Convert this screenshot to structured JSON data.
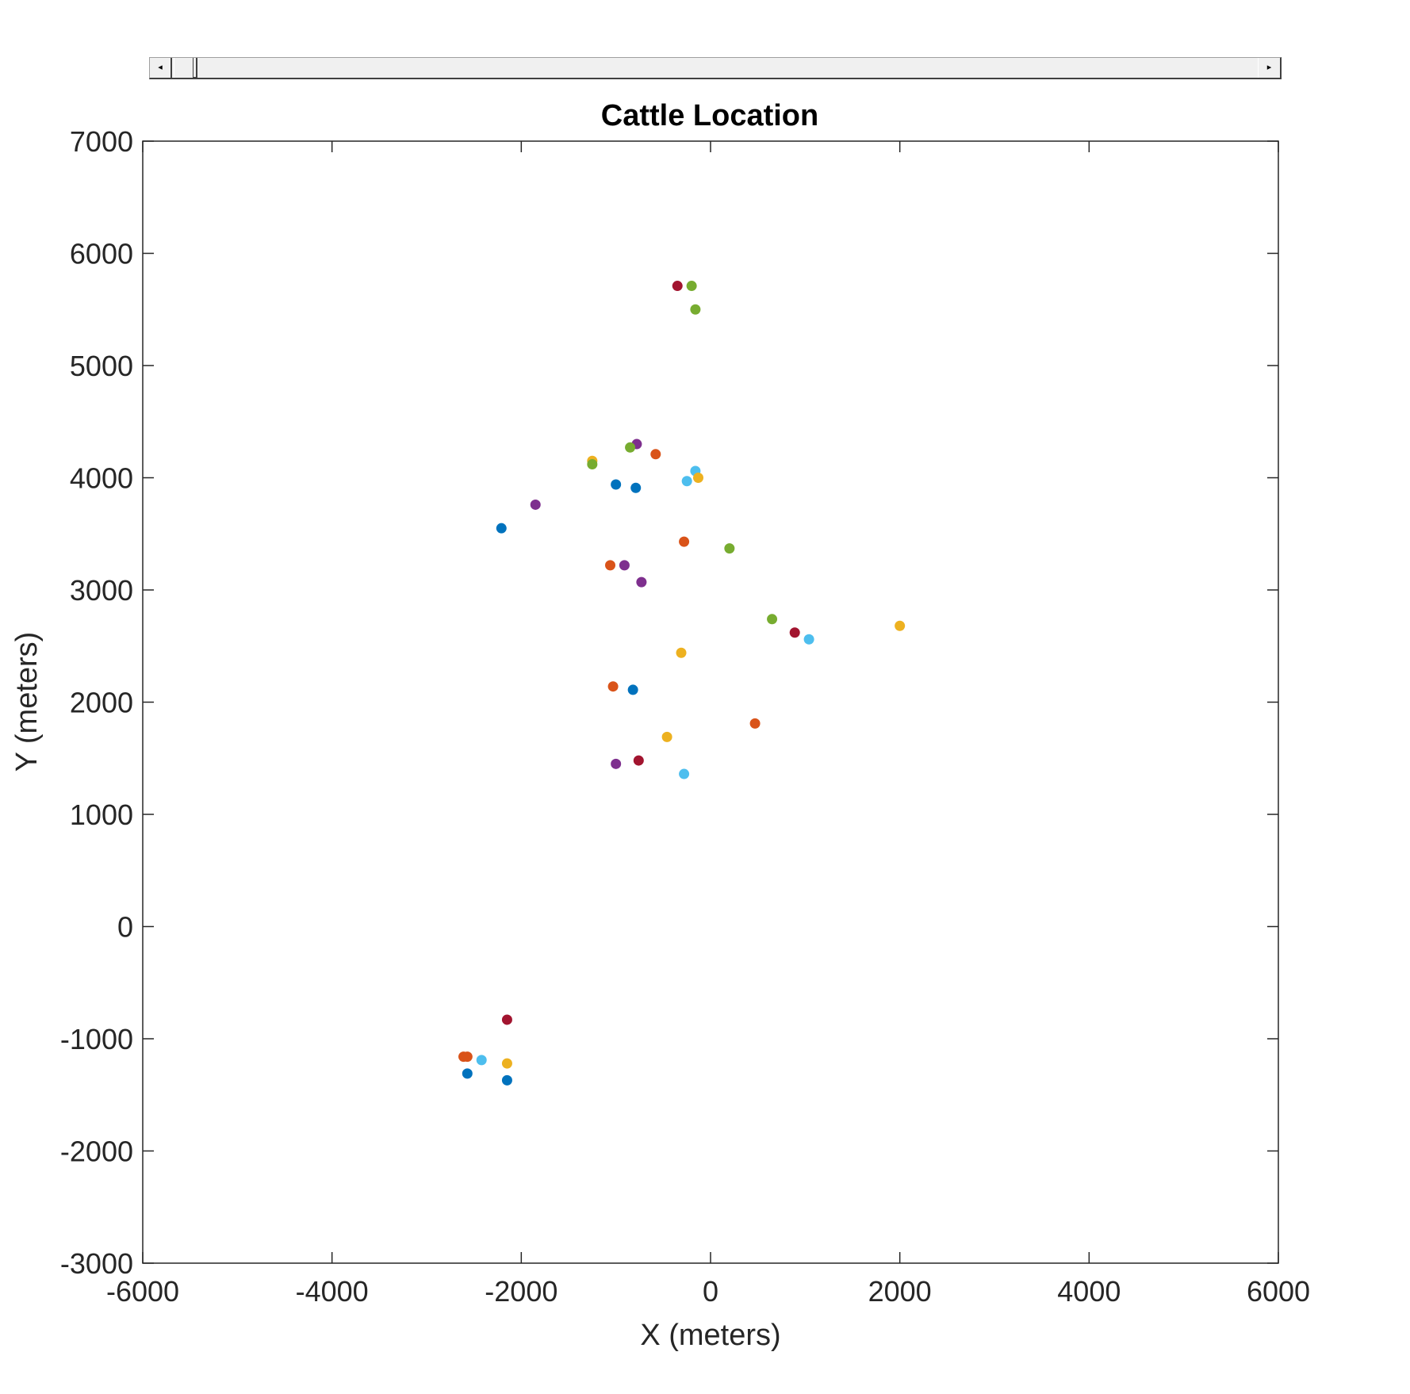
{
  "slider": {
    "left_arrow": "◂",
    "right_arrow": "▸"
  },
  "chart_data": {
    "type": "scatter",
    "title": "Cattle Location",
    "xlabel": "X (meters)",
    "ylabel": "Y (meters)",
    "xlim": [
      -6000,
      6000
    ],
    "ylim": [
      -3000,
      7000
    ],
    "xticks": [
      -6000,
      -4000,
      -2000,
      0,
      2000,
      4000,
      6000
    ],
    "yticks": [
      -3000,
      -2000,
      -1000,
      0,
      1000,
      2000,
      3000,
      4000,
      5000,
      6000,
      7000
    ],
    "xtick_labels": [
      "-6000",
      "-4000",
      "-2000",
      "0",
      "2000",
      "4000",
      "6000"
    ],
    "ytick_labels": [
      "-3000",
      "-2000",
      "-1000",
      "0",
      "1000",
      "2000",
      "3000",
      "4000",
      "5000",
      "6000",
      "7000"
    ],
    "grid": false,
    "colors": {
      "blue": "#0072bd",
      "orange": "#d95319",
      "yellow": "#edb120",
      "purple": "#7e2f8e",
      "green": "#77ac30",
      "cyan": "#4dbeee",
      "red": "#a2142f"
    },
    "points": [
      {
        "x": -350,
        "y": 5710,
        "color": "red"
      },
      {
        "x": -200,
        "y": 5710,
        "color": "green"
      },
      {
        "x": -160,
        "y": 5500,
        "color": "green"
      },
      {
        "x": -780,
        "y": 4300,
        "color": "purple"
      },
      {
        "x": -850,
        "y": 4270,
        "color": "green"
      },
      {
        "x": -580,
        "y": 4210,
        "color": "orange"
      },
      {
        "x": -1250,
        "y": 4150,
        "color": "yellow"
      },
      {
        "x": -1250,
        "y": 4120,
        "color": "green"
      },
      {
        "x": -160,
        "y": 4060,
        "color": "cyan"
      },
      {
        "x": -130,
        "y": 4000,
        "color": "yellow"
      },
      {
        "x": -250,
        "y": 3970,
        "color": "cyan"
      },
      {
        "x": -1000,
        "y": 3940,
        "color": "blue"
      },
      {
        "x": -790,
        "y": 3910,
        "color": "blue"
      },
      {
        "x": -1850,
        "y": 3760,
        "color": "purple"
      },
      {
        "x": -2210,
        "y": 3550,
        "color": "blue"
      },
      {
        "x": -280,
        "y": 3430,
        "color": "orange"
      },
      {
        "x": 200,
        "y": 3370,
        "color": "green"
      },
      {
        "x": -1060,
        "y": 3220,
        "color": "orange"
      },
      {
        "x": -910,
        "y": 3220,
        "color": "purple"
      },
      {
        "x": -730,
        "y": 3070,
        "color": "purple"
      },
      {
        "x": 650,
        "y": 2740,
        "color": "green"
      },
      {
        "x": 2000,
        "y": 2680,
        "color": "yellow"
      },
      {
        "x": 890,
        "y": 2620,
        "color": "red"
      },
      {
        "x": 1040,
        "y": 2560,
        "color": "cyan"
      },
      {
        "x": -310,
        "y": 2440,
        "color": "yellow"
      },
      {
        "x": -1030,
        "y": 2140,
        "color": "orange"
      },
      {
        "x": -820,
        "y": 2110,
        "color": "blue"
      },
      {
        "x": 470,
        "y": 1810,
        "color": "orange"
      },
      {
        "x": -460,
        "y": 1690,
        "color": "yellow"
      },
      {
        "x": -760,
        "y": 1480,
        "color": "red"
      },
      {
        "x": -1000,
        "y": 1450,
        "color": "purple"
      },
      {
        "x": -280,
        "y": 1360,
        "color": "cyan"
      },
      {
        "x": -2150,
        "y": -830,
        "color": "red"
      },
      {
        "x": -2610,
        "y": -1160,
        "color": "orange"
      },
      {
        "x": -2570,
        "y": -1160,
        "color": "orange"
      },
      {
        "x": -2420,
        "y": -1190,
        "color": "cyan"
      },
      {
        "x": -2150,
        "y": -1220,
        "color": "yellow"
      },
      {
        "x": -2570,
        "y": -1310,
        "color": "blue"
      },
      {
        "x": -2150,
        "y": -1370,
        "color": "blue"
      }
    ]
  }
}
